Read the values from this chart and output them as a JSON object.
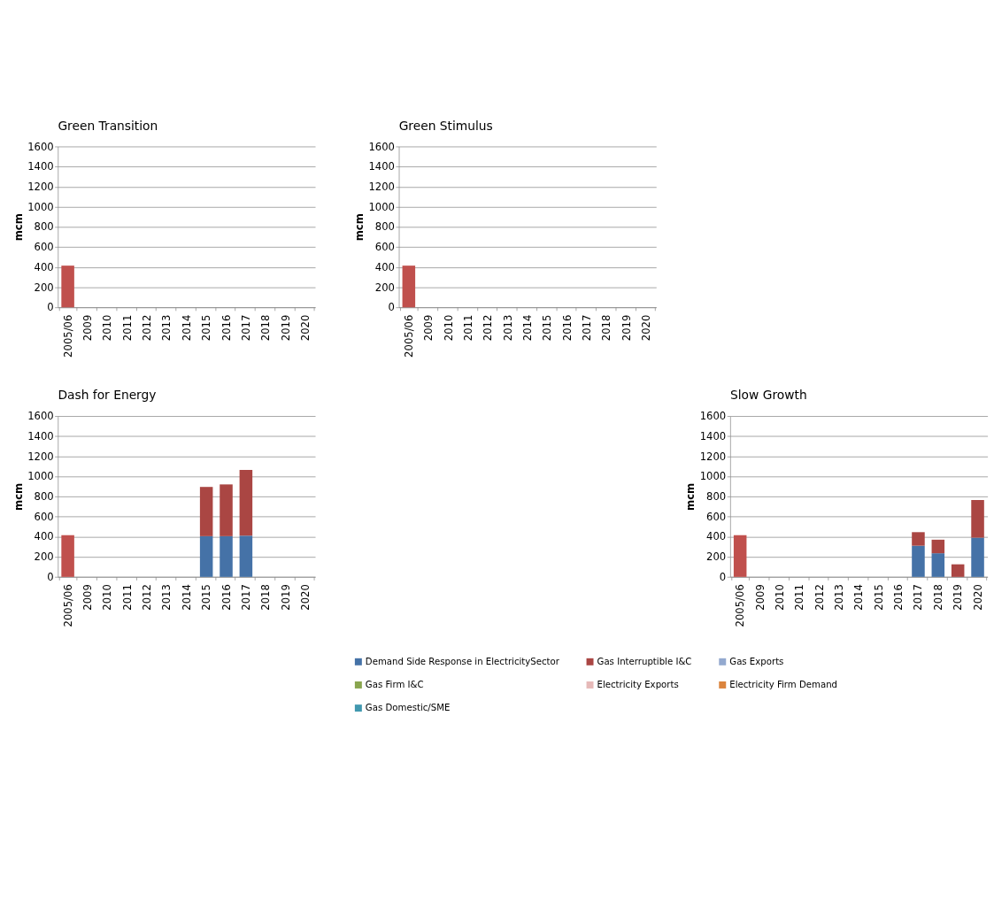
{
  "chart_data": [
    {
      "type": "bar",
      "title": "Green Transition",
      "ylabel": "mcm",
      "stacked": true,
      "grid": "y",
      "categories": [
        "2005/06",
        "2009",
        "2010",
        "2011",
        "2012",
        "2013",
        "2014",
        "2015",
        "2016",
        "2017",
        "2018",
        "2019",
        "2020"
      ],
      "ylim": [
        0,
        1600
      ],
      "yticks": [
        0,
        200,
        400,
        600,
        800,
        1000,
        1200,
        1400,
        1600
      ],
      "series": [
        {
          "color": "#c0504d",
          "values": [
            415,
            null,
            null,
            null,
            null,
            null,
            null,
            null,
            null,
            null,
            null,
            null,
            null
          ]
        }
      ]
    },
    {
      "type": "bar",
      "title": "Green Stimulus",
      "ylabel": "mcm",
      "stacked": true,
      "grid": "y",
      "categories": [
        "2005/06",
        "2009",
        "2010",
        "2011",
        "2012",
        "2013",
        "2014",
        "2015",
        "2016",
        "2017",
        "2018",
        "2019",
        "2020"
      ],
      "ylim": [
        0,
        1600
      ],
      "yticks": [
        0,
        200,
        400,
        600,
        800,
        1000,
        1200,
        1400,
        1600
      ],
      "series": [
        {
          "color": "#c0504d",
          "values": [
            415,
            null,
            null,
            null,
            null,
            null,
            null,
            null,
            null,
            null,
            null,
            null,
            null
          ]
        }
      ]
    },
    {
      "type": "bar",
      "title": "Dash for Energy",
      "ylabel": "mcm",
      "stacked": true,
      "grid": "y",
      "categories": [
        "2005/06",
        "2009",
        "2010",
        "2011",
        "2012",
        "2013",
        "2014",
        "2015",
        "2016",
        "2017",
        "2018",
        "2019",
        "2020"
      ],
      "ylim": [
        0,
        1600
      ],
      "yticks": [
        0,
        200,
        400,
        600,
        800,
        1000,
        1200,
        1400,
        1600
      ],
      "series": [
        {
          "color": "#4572a7",
          "values": [
            null,
            null,
            null,
            null,
            null,
            null,
            null,
            405,
            405,
            410,
            null,
            null,
            null
          ]
        },
        {
          "color": "#aa4643",
          "colors": [
            "#c0504d",
            "#aa4643",
            "#aa4643",
            "#aa4643",
            "#aa4643",
            "#aa4643",
            "#aa4643",
            "#aa4643",
            "#aa4643",
            "#aa4643",
            "#aa4643",
            "#aa4643",
            "#aa4643"
          ],
          "values": [
            415,
            null,
            null,
            null,
            null,
            null,
            null,
            490,
            515,
            655,
            null,
            null,
            null
          ]
        }
      ]
    },
    {
      "type": "bar",
      "title": "Slow Growth",
      "ylabel": "mcm",
      "stacked": true,
      "grid": "y",
      "legend": "bottom",
      "categories": [
        "2005/06",
        "2009",
        "2010",
        "2011",
        "2012",
        "2013",
        "2014",
        "2015",
        "2016",
        "2017",
        "2018",
        "2019",
        "2020"
      ],
      "ylim": [
        0,
        1600
      ],
      "yticks": [
        0,
        200,
        400,
        600,
        800,
        1000,
        1200,
        1400,
        1600
      ],
      "series": [
        {
          "name": "Demand Side Response in ElectricitySector",
          "color": "#4572a7",
          "values": [
            null,
            null,
            null,
            null,
            null,
            null,
            null,
            null,
            null,
            310,
            235,
            null,
            390
          ]
        },
        {
          "name": "Gas Interruptible I&C",
          "color": "#aa4643",
          "colors": [
            "#c0504d",
            "#aa4643",
            "#aa4643",
            "#aa4643",
            "#aa4643",
            "#aa4643",
            "#aa4643",
            "#aa4643",
            "#aa4643",
            "#aa4643",
            "#aa4643",
            "#aa4643",
            "#aa4643"
          ],
          "values": [
            415,
            null,
            null,
            null,
            null,
            null,
            null,
            null,
            null,
            135,
            135,
            125,
            375
          ]
        },
        {
          "name": "Gas Exports",
          "color": "#93a9cf",
          "values": [
            null,
            null,
            null,
            null,
            null,
            null,
            null,
            null,
            null,
            null,
            null,
            null,
            null
          ]
        },
        {
          "name": "Gas Firm I&C",
          "color": "#89a54e",
          "values": [
            null,
            null,
            null,
            null,
            null,
            null,
            null,
            null,
            null,
            null,
            null,
            null,
            null
          ]
        },
        {
          "name": "Electricity Exports",
          "color": "#e6b9b8",
          "values": [
            null,
            null,
            null,
            null,
            null,
            null,
            null,
            null,
            null,
            null,
            null,
            null,
            null
          ]
        },
        {
          "name": "Electricity Firm Demand",
          "color": "#db843d",
          "values": [
            null,
            null,
            null,
            null,
            null,
            null,
            null,
            null,
            null,
            null,
            null,
            null,
            null
          ]
        },
        {
          "name": "Gas Domestic/SME",
          "color": "#4198af",
          "values": [
            null,
            null,
            null,
            null,
            null,
            null,
            null,
            null,
            null,
            null,
            null,
            null,
            null
          ]
        }
      ]
    }
  ]
}
